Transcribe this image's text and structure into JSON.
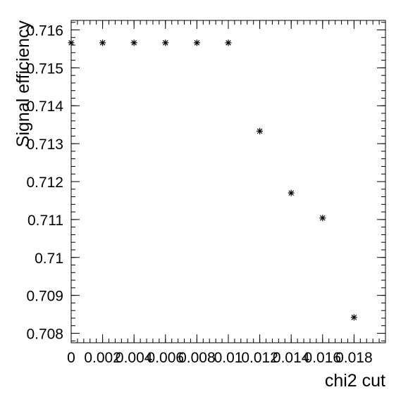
{
  "chart_data": {
    "type": "scatter",
    "title": "",
    "xlabel": "chi2 cut",
    "ylabel": "Signal efficiency",
    "xlim": [
      0,
      0.02
    ],
    "ylim": [
      0.70775,
      0.71625
    ],
    "x_ticks": [
      0,
      0.002,
      0.004,
      0.006,
      0.008,
      0.01,
      0.012,
      0.014,
      0.016,
      0.018
    ],
    "x_tick_labels": [
      "0",
      "0.002",
      "0.004",
      "0.006",
      "0.008",
      "0.01",
      "0.012",
      "0.014",
      "0.016",
      "0.018"
    ],
    "y_ticks": [
      0.708,
      0.709,
      0.71,
      0.711,
      0.712,
      0.713,
      0.714,
      0.715,
      0.716
    ],
    "y_tick_labels": [
      "0.708",
      "0.709",
      "0.71",
      "0.711",
      "0.712",
      "0.713",
      "0.714",
      "0.715",
      "0.716"
    ],
    "marker": "star",
    "grid": false,
    "points": [
      {
        "x": 0,
        "y": 0.71566
      },
      {
        "x": 0.002,
        "y": 0.71566
      },
      {
        "x": 0.004,
        "y": 0.71566
      },
      {
        "x": 0.006,
        "y": 0.71566
      },
      {
        "x": 0.008,
        "y": 0.71566
      },
      {
        "x": 0.01,
        "y": 0.71566
      },
      {
        "x": 0.012,
        "y": 0.71333
      },
      {
        "x": 0.014,
        "y": 0.7117
      },
      {
        "x": 0.016,
        "y": 0.71104
      },
      {
        "x": 0.018,
        "y": 0.70842
      }
    ]
  }
}
